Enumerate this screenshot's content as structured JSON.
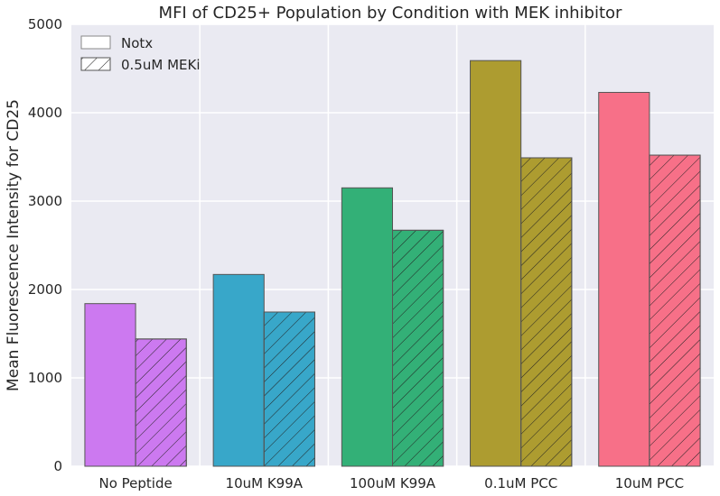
{
  "chart_data": {
    "type": "bar",
    "title": "MFI of CD25+ Population by Condition with MEK inhibitor",
    "xlabel": "",
    "ylabel": "Mean Fluorescence Intensity for CD25",
    "ylim": [
      0,
      5000
    ],
    "yticks": [
      0,
      1000,
      2000,
      3000,
      4000,
      5000
    ],
    "categories": [
      "No Peptide",
      "10uM K99A",
      "100uM K99A",
      "0.1uM PCC",
      "10uM PCC"
    ],
    "category_colors": [
      "#cc79f0",
      "#38a7c9",
      "#33b077",
      "#ad9c30",
      "#f77088"
    ],
    "series": [
      {
        "name": "Notx",
        "hatch": "none",
        "values": [
          1840,
          2170,
          3150,
          4590,
          4230
        ]
      },
      {
        "name": "0.5uM MEKi",
        "hatch": "diagonal",
        "values": [
          1440,
          1745,
          2670,
          3490,
          3520
        ]
      }
    ],
    "grid": true,
    "legend_position": "top-left"
  }
}
